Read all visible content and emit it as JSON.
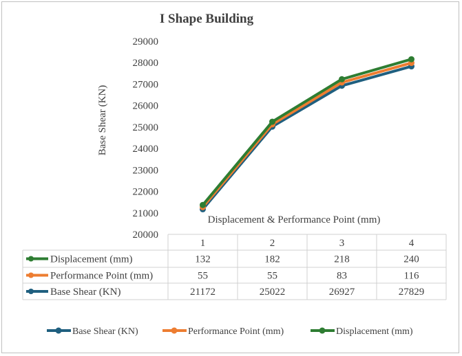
{
  "chart_data": {
    "type": "line",
    "title": "I Shape Building",
    "xlabel": "Displacement & Performance Point (mm)",
    "ylabel": "Base Shear (KN)",
    "ylim": [
      20000,
      29000
    ],
    "ytick_step": 1000,
    "y_ticks": [
      "20000",
      "21000",
      "22000",
      "23000",
      "24000",
      "25000",
      "26000",
      "27000",
      "28000",
      "29000"
    ],
    "categories": [
      "1",
      "2",
      "3",
      "4"
    ],
    "series": [
      {
        "name": "Displacement (mm)",
        "color": "#2e7d32",
        "values": [
          132,
          182,
          218,
          240
        ],
        "table_values": [
          "132",
          "182",
          "218",
          "240"
        ],
        "plotted": [
          21370,
          25250,
          27230,
          28160
        ]
      },
      {
        "name": "Performance Point (mm)",
        "color": "#ed7d31",
        "values": [
          55,
          55,
          83,
          116
        ],
        "table_values": [
          "55",
          "55",
          "83",
          "116"
        ],
        "plotted": [
          21270,
          25130,
          27080,
          27990
        ]
      },
      {
        "name": "Base Shear (KN)",
        "color": "#1f5f7f",
        "values": [
          21172,
          25022,
          26927,
          27829
        ],
        "table_values": [
          "21172",
          "25022",
          "26927",
          "27829"
        ],
        "plotted": [
          21172,
          25022,
          26927,
          27829
        ]
      }
    ],
    "legend_position": "bottom",
    "legend_order": [
      2,
      1,
      0
    ],
    "grid": false
  }
}
